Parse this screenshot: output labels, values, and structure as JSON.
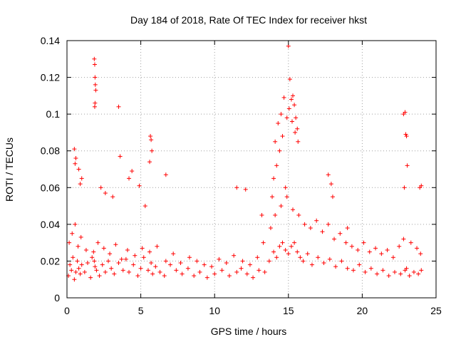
{
  "chart_data": {
    "type": "scatter",
    "title": "Day 184 of 2018, Rate Of TEC Index for receiver hkst",
    "xlabel": "GPS time / hours",
    "ylabel": "ROTI / TECUs",
    "xlim": [
      0,
      25
    ],
    "ylim": [
      0,
      0.14
    ],
    "xticks": [
      0,
      5,
      10,
      15,
      20,
      25
    ],
    "yticks": [
      0,
      0.02,
      0.04,
      0.06,
      0.08,
      0.1,
      0.12,
      0.14
    ],
    "xtick_labels": [
      "0",
      "5",
      "10",
      "15",
      "20",
      "25"
    ],
    "ytick_labels": [
      "0",
      "0.02",
      "0.04",
      "0.06",
      "0.08",
      "0.1",
      "0.12",
      "0.14"
    ],
    "grid": true,
    "marker": "+",
    "marker_color": "#ff0000",
    "series": [
      {
        "name": "ROTI",
        "x": [
          0.1,
          0.2,
          0.3,
          0.4,
          0.5,
          0.6,
          0.7,
          0.8,
          0.9,
          1.0,
          1.2,
          1.4,
          1.6,
          1.8,
          1.85,
          1.9,
          2.0,
          2.2,
          2.4,
          2.6,
          2.8,
          3.0,
          3.2,
          3.5,
          3.8,
          4.0,
          4.2,
          4.5,
          4.8,
          5.0,
          5.2,
          5.5,
          5.7,
          5.8,
          6.0,
          6.3,
          6.6,
          7.0,
          7.4,
          7.8,
          8.2,
          8.6,
          9.0,
          9.5,
          10.0,
          10.5,
          11.0,
          11.5,
          11.8,
          12.2,
          12.6,
          13.0,
          13.4,
          13.7,
          14.0,
          14.2,
          14.4,
          14.6,
          14.8,
          15.0,
          15.2,
          15.4,
          15.6,
          15.8,
          16.0,
          16.3,
          16.6,
          17.0,
          17.4,
          17.8,
          18.2,
          18.6,
          19.0,
          19.4,
          19.8,
          20.2,
          20.6,
          21.0,
          21.4,
          21.8,
          22.2,
          22.6,
          22.9,
          23.0,
          23.2,
          23.5,
          23.8,
          24.0,
          0.15,
          0.35,
          0.55,
          0.75,
          0.95,
          1.3,
          1.7,
          2.1,
          2.5,
          2.9,
          3.3,
          3.7,
          4.1,
          4.6,
          5.1,
          5.6,
          6.1,
          6.7,
          7.2,
          7.7,
          8.3,
          8.8,
          9.3,
          9.8,
          10.3,
          10.8,
          11.3,
          11.9,
          12.4,
          12.9,
          13.3,
          13.8,
          14.1,
          14.5,
          14.9,
          15.3,
          15.7,
          16.1,
          16.5,
          16.9,
          17.3,
          17.7,
          18.1,
          18.5,
          18.9,
          19.3,
          19.7,
          20.1,
          20.5,
          20.9,
          21.3,
          21.7,
          22.1,
          22.5,
          22.8,
          23.3,
          23.7,
          23.95,
          1.85,
          1.88,
          1.9,
          1.92,
          1.95,
          1.9,
          1.88,
          3.5,
          3.6,
          5.65,
          5.7,
          5.75,
          5.6,
          6.7,
          0.5,
          0.6,
          0.55,
          2.3,
          2.6,
          3.1,
          4.2,
          4.4,
          4.9,
          5.3,
          14.1,
          14.3,
          14.5,
          14.7,
          14.9,
          15.0,
          15.1,
          15.2,
          15.3,
          15.4,
          15.5,
          15.6,
          14.2,
          14.4,
          14.6,
          14.8,
          15.05,
          15.25,
          15.45,
          15.65,
          13.9,
          14.0,
          22.8,
          22.9,
          23.0,
          22.95,
          23.05,
          22.85,
          17.7,
          17.9,
          18.0,
          11.5,
          12.1,
          13.2,
          19.0,
          24.0,
          23.9,
          1.0,
          0.8,
          0.9
        ],
        "y": [
          0.012,
          0.018,
          0.015,
          0.022,
          0.01,
          0.014,
          0.02,
          0.016,
          0.013,
          0.018,
          0.014,
          0.019,
          0.011,
          0.025,
          0.02,
          0.017,
          0.015,
          0.012,
          0.018,
          0.014,
          0.02,
          0.016,
          0.013,
          0.019,
          0.015,
          0.021,
          0.014,
          0.018,
          0.012,
          0.016,
          0.022,
          0.015,
          0.019,
          0.013,
          0.017,
          0.014,
          0.012,
          0.018,
          0.015,
          0.013,
          0.016,
          0.012,
          0.014,
          0.011,
          0.013,
          0.015,
          0.012,
          0.014,
          0.016,
          0.013,
          0.011,
          0.015,
          0.014,
          0.02,
          0.025,
          0.022,
          0.028,
          0.03,
          0.026,
          0.024,
          0.028,
          0.03,
          0.025,
          0.022,
          0.02,
          0.024,
          0.018,
          0.022,
          0.019,
          0.021,
          0.017,
          0.02,
          0.016,
          0.015,
          0.018,
          0.014,
          0.016,
          0.013,
          0.015,
          0.012,
          0.014,
          0.013,
          0.015,
          0.016,
          0.012,
          0.014,
          0.013,
          0.015,
          0.03,
          0.035,
          0.04,
          0.028,
          0.033,
          0.026,
          0.022,
          0.03,
          0.027,
          0.024,
          0.029,
          0.021,
          0.026,
          0.023,
          0.027,
          0.025,
          0.028,
          0.02,
          0.024,
          0.019,
          0.022,
          0.02,
          0.018,
          0.017,
          0.021,
          0.019,
          0.023,
          0.02,
          0.018,
          0.022,
          0.03,
          0.038,
          0.045,
          0.05,
          0.055,
          0.048,
          0.045,
          0.04,
          0.038,
          0.042,
          0.036,
          0.04,
          0.032,
          0.035,
          0.03,
          0.028,
          0.026,
          0.03,
          0.025,
          0.027,
          0.024,
          0.026,
          0.022,
          0.028,
          0.032,
          0.03,
          0.027,
          0.024,
          0.13,
          0.127,
          0.12,
          0.116,
          0.113,
          0.106,
          0.104,
          0.104,
          0.077,
          0.088,
          0.086,
          0.08,
          0.074,
          0.067,
          0.081,
          0.076,
          0.073,
          0.06,
          0.057,
          0.055,
          0.065,
          0.069,
          0.061,
          0.05,
          0.085,
          0.095,
          0.1,
          0.109,
          0.098,
          0.137,
          0.119,
          0.108,
          0.11,
          0.105,
          0.098,
          0.092,
          0.072,
          0.08,
          0.088,
          0.06,
          0.103,
          0.096,
          0.09,
          0.085,
          0.055,
          0.065,
          0.1,
          0.101,
          0.088,
          0.089,
          0.072,
          0.06,
          0.067,
          0.062,
          0.055,
          0.06,
          0.059,
          0.045,
          0.038,
          0.061,
          0.06,
          0.065,
          0.07,
          0.062
        ]
      }
    ]
  }
}
